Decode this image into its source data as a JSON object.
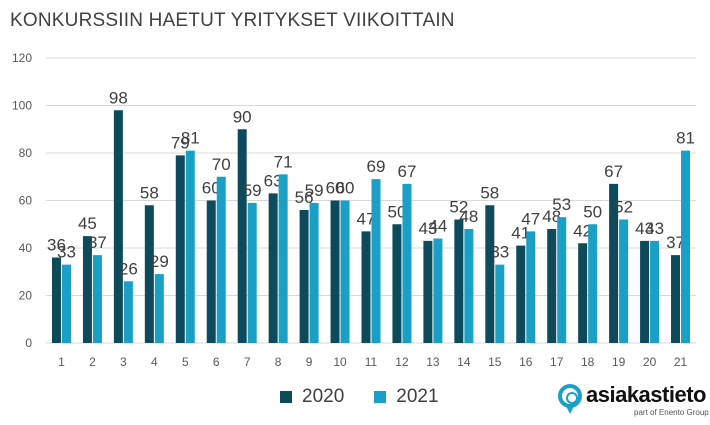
{
  "title": "KONKURSSIIN HAETUT YRITYKSET VIIKOITTAIN",
  "colors": {
    "series2020": "#0d4a5c",
    "series2021": "#1aa0c6",
    "grid": "#d9d9d9",
    "text": "#595959",
    "label": "#404040"
  },
  "chart_data": {
    "type": "bar",
    "title": "KONKURSSIIN HAETUT YRITYKSET VIIKOITTAIN",
    "xlabel": "",
    "ylabel": "",
    "ylim": [
      0,
      120
    ],
    "yticks": [
      0,
      20,
      40,
      60,
      80,
      100,
      120
    ],
    "grid": true,
    "legend": "bottom",
    "categories": [
      "1",
      "2",
      "3",
      "4",
      "5",
      "6",
      "7",
      "8",
      "9",
      "10",
      "11",
      "12",
      "13",
      "14",
      "15",
      "16",
      "17",
      "18",
      "19",
      "20",
      "21"
    ],
    "series": [
      {
        "name": "2020",
        "values": [
          36,
          45,
          98,
          58,
          79,
          60,
          90,
          63,
          56,
          60,
          47,
          50,
          43,
          52,
          58,
          41,
          48,
          42,
          67,
          43,
          37
        ]
      },
      {
        "name": "2021",
        "values": [
          33,
          37,
          26,
          29,
          81,
          70,
          59,
          71,
          59,
          60,
          69,
          67,
          44,
          48,
          33,
          47,
          53,
          50,
          52,
          43,
          81
        ]
      }
    ]
  },
  "legend": {
    "label2020": "2020",
    "label2021": "2021"
  },
  "logo": {
    "name": "asiakastieto",
    "tagline": "part of Enento Group"
  }
}
